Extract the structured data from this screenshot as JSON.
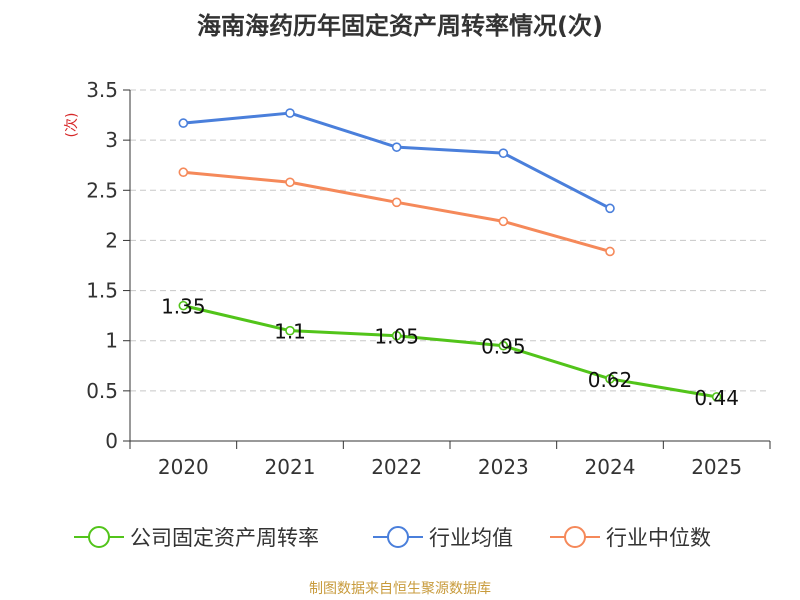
{
  "title": "海南海药历年固定资产周转率情况(次)",
  "source": "制图数据来自恒生聚源数据库",
  "chart_data": {
    "type": "line",
    "title": "海南海药历年固定资产周转率情况(次)",
    "ylabel": "(次)",
    "xlabel": "",
    "categories": [
      "2020",
      "2021",
      "2022",
      "2023",
      "2024",
      "2025"
    ],
    "ylim": [
      0,
      3.5
    ],
    "yticks": [
      "0",
      "0.5",
      "1",
      "1.5",
      "2",
      "2.5",
      "3",
      "3.5"
    ],
    "grid": true,
    "legend_position": "bottom",
    "series": [
      {
        "name": "公司固定资产周转率",
        "color": "#52c41a",
        "values": [
          1.35,
          1.1,
          1.05,
          0.95,
          0.62,
          0.44
        ],
        "labels": [
          "1.35",
          "1.1",
          "1.05",
          "0.95",
          "0.62",
          "0.44"
        ]
      },
      {
        "name": "行业均值",
        "color": "#4a7fdb",
        "values": [
          3.17,
          3.27,
          2.93,
          2.87,
          2.32,
          null
        ]
      },
      {
        "name": "行业中位数",
        "color": "#f5895a",
        "values": [
          2.68,
          2.58,
          2.38,
          2.19,
          1.89,
          null
        ]
      }
    ]
  }
}
